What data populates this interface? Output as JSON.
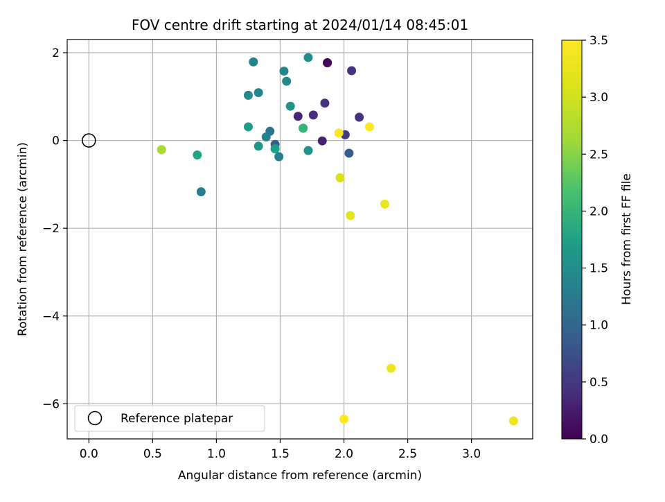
{
  "chart_data": {
    "type": "scatter",
    "title": "FOV centre drift starting at 2024/01/14 08:45:01",
    "xlabel": "Angular distance from reference (arcmin)",
    "ylabel": "Rotation from reference (arcmin)",
    "xlim": [
      -0.17,
      3.48
    ],
    "ylim": [
      -6.8,
      2.3
    ],
    "x_ticks": [
      0.0,
      0.5,
      1.0,
      1.5,
      2.0,
      2.5,
      3.0
    ],
    "x_tick_labels": [
      "0.0",
      "0.5",
      "1.0",
      "1.5",
      "2.0",
      "2.5",
      "3.0"
    ],
    "y_ticks": [
      2,
      0,
      -2,
      -4,
      -6
    ],
    "y_tick_labels": [
      "2",
      "0",
      "−2",
      "−4",
      "−6"
    ],
    "grid": true,
    "legend": {
      "location": "lower-left",
      "entries": [
        "Reference platepar"
      ]
    },
    "reference_point": {
      "x": 0.0,
      "y": 0.0
    },
    "colorbar": {
      "label": "Hours from first FF file",
      "range": [
        0.0,
        3.5
      ],
      "ticks": [
        0.0,
        0.5,
        1.0,
        1.5,
        2.0,
        2.5,
        3.0,
        3.5
      ],
      "tick_labels": [
        "0.0",
        "0.5",
        "1.0",
        "1.5",
        "2.0",
        "2.5",
        "3.0",
        "3.5"
      ],
      "colormap": "viridis"
    },
    "points": [
      {
        "x": 1.87,
        "y": 1.77,
        "c": 0.0
      },
      {
        "x": 1.87,
        "y": 1.77,
        "c": 0.05
      },
      {
        "x": 1.83,
        "y": -0.01,
        "c": 0.3
      },
      {
        "x": 1.64,
        "y": 0.55,
        "c": 0.35
      },
      {
        "x": 1.76,
        "y": 0.58,
        "c": 0.4
      },
      {
        "x": 1.85,
        "y": 0.85,
        "c": 0.45
      },
      {
        "x": 2.06,
        "y": 1.59,
        "c": 0.45
      },
      {
        "x": 2.12,
        "y": 0.53,
        "c": 0.45
      },
      {
        "x": 2.01,
        "y": 0.13,
        "c": 0.5
      },
      {
        "x": 2.04,
        "y": -0.29,
        "c": 0.9
      },
      {
        "x": 1.46,
        "y": -0.09,
        "c": 0.9
      },
      {
        "x": 1.46,
        "y": -0.19,
        "c": 1.1
      },
      {
        "x": 1.42,
        "y": 0.21,
        "c": 1.2
      },
      {
        "x": 1.49,
        "y": -0.37,
        "c": 1.3
      },
      {
        "x": 1.39,
        "y": 0.08,
        "c": 1.35
      },
      {
        "x": 0.88,
        "y": -1.17,
        "c": 1.3
      },
      {
        "x": 1.29,
        "y": 1.79,
        "c": 1.35
      },
      {
        "x": 1.53,
        "y": 1.58,
        "c": 1.4
      },
      {
        "x": 1.33,
        "y": 1.09,
        "c": 1.4
      },
      {
        "x": 1.25,
        "y": 1.03,
        "c": 1.45
      },
      {
        "x": 1.55,
        "y": 1.35,
        "c": 1.45
      },
      {
        "x": 1.72,
        "y": 1.89,
        "c": 1.5
      },
      {
        "x": 1.58,
        "y": 0.78,
        "c": 1.55
      },
      {
        "x": 1.72,
        "y": -0.23,
        "c": 1.55
      },
      {
        "x": 1.33,
        "y": -0.13,
        "c": 1.6
      },
      {
        "x": 1.25,
        "y": 0.31,
        "c": 1.7
      },
      {
        "x": 1.46,
        "y": -0.19,
        "c": 1.75
      },
      {
        "x": 0.85,
        "y": -0.33,
        "c": 1.8
      },
      {
        "x": 1.68,
        "y": 0.28,
        "c": 1.9
      },
      {
        "x": 1.68,
        "y": 0.28,
        "c": 2.0
      },
      {
        "x": 0.57,
        "y": -0.21,
        "c": 2.6
      },
      {
        "x": 0.57,
        "y": -0.21,
        "c": 2.7
      },
      {
        "x": 1.97,
        "y": -0.85,
        "c": 3.1
      },
      {
        "x": 2.05,
        "y": -1.71,
        "c": 3.2
      },
      {
        "x": 2.32,
        "y": -1.45,
        "c": 3.25
      },
      {
        "x": 2.37,
        "y": -5.19,
        "c": 3.3
      },
      {
        "x": 3.33,
        "y": -6.39,
        "c": 3.3
      },
      {
        "x": 1.96,
        "y": 0.17,
        "c": 3.45
      },
      {
        "x": 2.2,
        "y": 0.31,
        "c": 3.5
      },
      {
        "x": 2.0,
        "y": -6.35,
        "c": 3.5
      }
    ]
  }
}
